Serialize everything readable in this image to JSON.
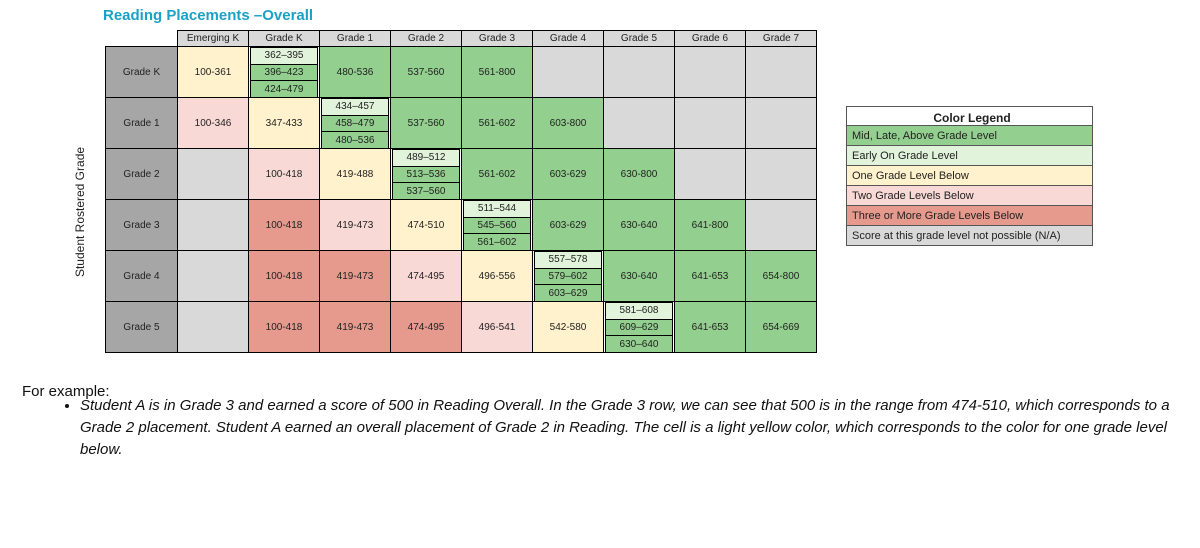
{
  "header": {
    "title": "Reading Placements –Overall",
    "axis_label": "Student Rostered Grade"
  },
  "table": {
    "columns": [
      "Emerging K",
      "Grade K",
      "Grade 1",
      "Grade 2",
      "Grade 3",
      "Grade 4",
      "Grade 5",
      "Grade 6",
      "Grade 7"
    ],
    "rows": [
      {
        "label": "Grade K",
        "cells": [
          {
            "text": "100-361",
            "color": "#fff2cc"
          },
          {
            "parts": [
              {
                "text": "362–395",
                "color": "#e2f3dc"
              },
              {
                "text": "396–423",
                "color": "#93cf8e"
              },
              {
                "text": "424–479",
                "color": "#93cf8e"
              }
            ]
          },
          {
            "text": "480-536",
            "color": "#93cf8e"
          },
          {
            "text": "537-560",
            "color": "#93cf8e"
          },
          {
            "text": "561-800",
            "color": "#93cf8e"
          },
          {
            "color": "#d9d9d9"
          },
          {
            "color": "#d9d9d9"
          },
          {
            "color": "#d9d9d9"
          },
          {
            "color": "#d9d9d9"
          }
        ]
      },
      {
        "label": "Grade 1",
        "cells": [
          {
            "text": "100-346",
            "color": "#f9d9d6"
          },
          {
            "text": "347-433",
            "color": "#fff2cc"
          },
          {
            "parts": [
              {
                "text": "434–457",
                "color": "#e2f3dc"
              },
              {
                "text": "458–479",
                "color": "#93cf8e"
              },
              {
                "text": "480–536",
                "color": "#93cf8e"
              }
            ]
          },
          {
            "text": "537-560",
            "color": "#93cf8e"
          },
          {
            "text": "561-602",
            "color": "#93cf8e"
          },
          {
            "text": "603-800",
            "color": "#93cf8e"
          },
          {
            "color": "#d9d9d9"
          },
          {
            "color": "#d9d9d9"
          },
          {
            "color": "#d9d9d9"
          }
        ]
      },
      {
        "label": "Grade 2",
        "cells": [
          {
            "color": "#d9d9d9"
          },
          {
            "text": "100-418",
            "color": "#f9d9d6"
          },
          {
            "text": "419-488",
            "color": "#fff2cc"
          },
          {
            "parts": [
              {
                "text": "489–512",
                "color": "#e2f3dc"
              },
              {
                "text": "513–536",
                "color": "#93cf8e"
              },
              {
                "text": "537–560",
                "color": "#93cf8e"
              }
            ]
          },
          {
            "text": "561-602",
            "color": "#93cf8e"
          },
          {
            "text": "603-629",
            "color": "#93cf8e"
          },
          {
            "text": "630-800",
            "color": "#93cf8e"
          },
          {
            "color": "#d9d9d9"
          },
          {
            "color": "#d9d9d9"
          }
        ]
      },
      {
        "label": "Grade 3",
        "cells": [
          {
            "color": "#d9d9d9"
          },
          {
            "text": "100-418",
            "color": "#e59a8d"
          },
          {
            "text": "419-473",
            "color": "#f9d9d6"
          },
          {
            "text": "474-510",
            "color": "#fff2cc"
          },
          {
            "parts": [
              {
                "text": "511–544",
                "color": "#e2f3dc"
              },
              {
                "text": "545–560",
                "color": "#93cf8e"
              },
              {
                "text": "561–602",
                "color": "#93cf8e"
              }
            ]
          },
          {
            "text": "603-629",
            "color": "#93cf8e"
          },
          {
            "text": "630-640",
            "color": "#93cf8e"
          },
          {
            "text": "641-800",
            "color": "#93cf8e"
          },
          {
            "color": "#d9d9d9"
          }
        ]
      },
      {
        "label": "Grade 4",
        "cells": [
          {
            "color": "#d9d9d9"
          },
          {
            "text": "100-418",
            "color": "#e59a8d"
          },
          {
            "text": "419-473",
            "color": "#e59a8d"
          },
          {
            "text": "474-495",
            "color": "#f9d9d6"
          },
          {
            "text": "496-556",
            "color": "#fff2cc"
          },
          {
            "parts": [
              {
                "text": "557–578",
                "color": "#e2f3dc"
              },
              {
                "text": "579–602",
                "color": "#93cf8e"
              },
              {
                "text": "603–629",
                "color": "#93cf8e"
              }
            ]
          },
          {
            "text": "630-640",
            "color": "#93cf8e"
          },
          {
            "text": "641-653",
            "color": "#93cf8e"
          },
          {
            "text": "654-800",
            "color": "#93cf8e"
          }
        ]
      },
      {
        "label": "Grade 5",
        "cells": [
          {
            "color": "#d9d9d9"
          },
          {
            "text": "100-418",
            "color": "#e59a8d"
          },
          {
            "text": "419-473",
            "color": "#e59a8d"
          },
          {
            "text": "474-495",
            "color": "#e59a8d"
          },
          {
            "text": "496-541",
            "color": "#f9d9d6"
          },
          {
            "text": "542-580",
            "color": "#fff2cc"
          },
          {
            "parts": [
              {
                "text": "581–608",
                "color": "#e2f3dc"
              },
              {
                "text": "609–629",
                "color": "#93cf8e"
              },
              {
                "text": "630–640",
                "color": "#93cf8e"
              }
            ]
          },
          {
            "text": "641-653",
            "color": "#93cf8e"
          },
          {
            "text": "654-669",
            "color": "#93cf8e"
          }
        ]
      }
    ]
  },
  "legend": {
    "title": "Color Legend",
    "items": [
      {
        "label": "Mid, Late, Above Grade Level",
        "color": "#93cf8e"
      },
      {
        "label": "Early On Grade Level",
        "color": "#e2f3dc"
      },
      {
        "label": "One Grade Level Below",
        "color": "#fff2cc"
      },
      {
        "label": "Two Grade Levels Below",
        "color": "#f9d9d6"
      },
      {
        "label": "Three or More Grade Levels Below",
        "color": "#e59a8d"
      },
      {
        "label": "Score at this grade level not possible (N/A)",
        "color": "#d9d9d9"
      }
    ]
  },
  "example": {
    "intro": "For example:",
    "bullets": [
      "Student A is in Grade 3 and earned a score of 500 in Reading Overall. In the Grade 3 row, we can see that 500 is in the range from 474-510, which corresponds to a Grade 2 placement. Student A earned an overall placement of Grade 2 in Reading. The cell is a light yellow color, which corresponds to the color for one grade level below."
    ]
  }
}
